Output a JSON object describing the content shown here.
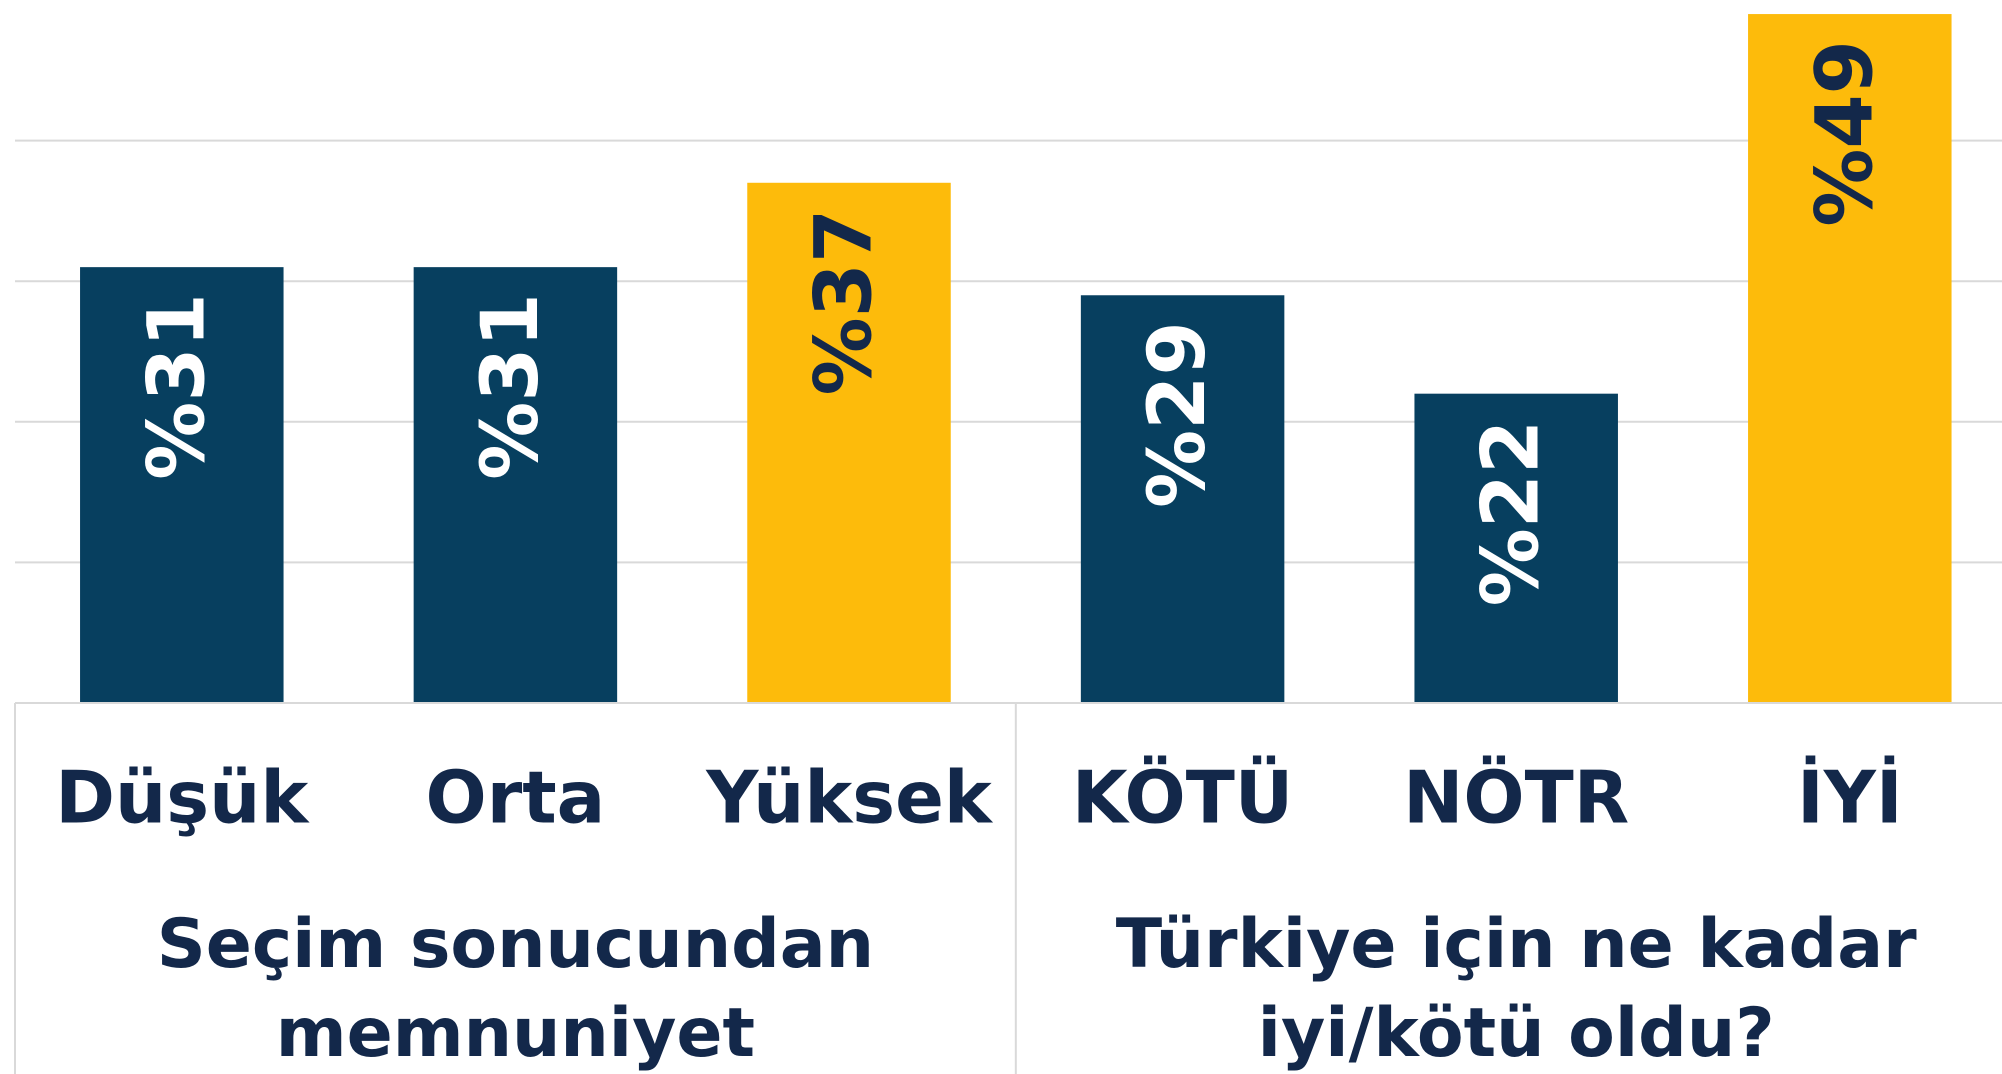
{
  "chart_data": {
    "type": "bar",
    "categories": [
      "Düşük",
      "Orta",
      "Yüksek",
      "KÖTÜ",
      "NÖTR",
      "İYİ"
    ],
    "values": [
      31,
      31,
      37,
      29,
      22,
      49
    ],
    "value_labels": [
      "%31",
      "%31",
      "%37",
      "%29",
      "%22",
      "%49"
    ],
    "colors": [
      "#073f5f",
      "#073f5f",
      "#fdbb0b",
      "#073f5f",
      "#073f5f",
      "#fdbb0b"
    ],
    "groups": [
      {
        "label": "Seçim sonucundan memnuniyet",
        "categories": [
          0,
          1,
          2
        ]
      },
      {
        "label": "Türkiye için ne kadar iyi/kötü oldu?",
        "categories": [
          3,
          4,
          5
        ]
      }
    ],
    "ylim": [
      0,
      50
    ],
    "yticks": [
      0,
      10,
      20,
      30,
      40
    ],
    "grid": true
  }
}
